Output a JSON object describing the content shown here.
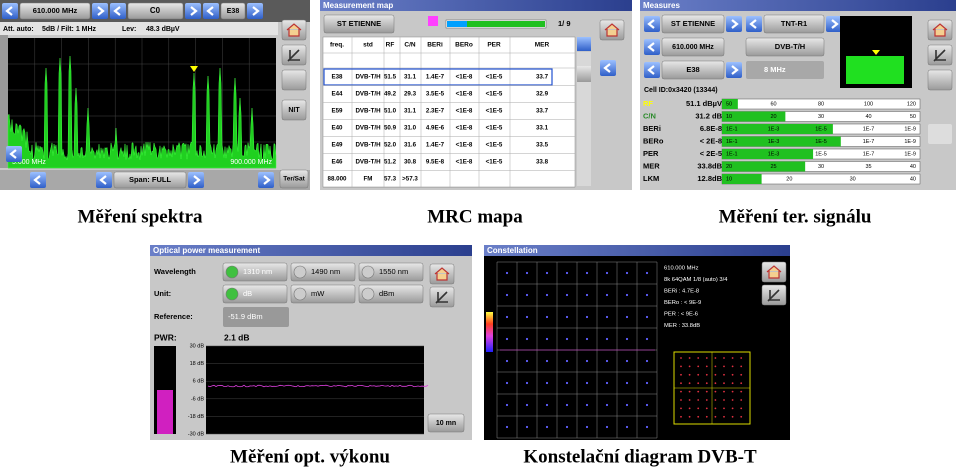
{
  "captions": [
    "Měření spektra",
    "MRC mapa",
    "Měření ter. signálu",
    "Měření opt. výkonu",
    "Konstelační diagram DVB-T"
  ],
  "spectrum": {
    "frequency": "610.000 MHz",
    "channel": "C0",
    "channel2": "E38",
    "att_label": "Att. auto:",
    "att_value": "5dB / Filt: 1 MHz",
    "lev_label": "Lev:",
    "lev_value": "48.3 dBµV",
    "start": "5.000 MHz",
    "stop": "900.000 MHz",
    "span": "Span: FULL",
    "nit": "NIT",
    "tersat": "Ter/Sat"
  },
  "mrc": {
    "title": "Measurement map",
    "site": "ST ETIENNE",
    "count": "1/ 9",
    "columns": [
      "freq.",
      "std",
      "RF",
      "C/N",
      "BERi",
      "BERo",
      "PER",
      "MER"
    ],
    "rows": [
      [
        "E38",
        "DVB-T/H",
        "51.5",
        "31.1",
        "1.4E-7",
        "<1E-8",
        "<1E-5",
        "33.7"
      ],
      [
        "E44",
        "DVB-T/H",
        "49.2",
        "29.3",
        "3.5E-5",
        "<1E-8",
        "<1E-5",
        "32.9"
      ],
      [
        "E59",
        "DVB-T/H",
        "51.0",
        "31.1",
        "2.3E-7",
        "<1E-8",
        "<1E-5",
        "33.7"
      ],
      [
        "E40",
        "DVB-T/H",
        "50.9",
        "31.0",
        "4.9E-6",
        "<1E-8",
        "<1E-5",
        "33.1"
      ],
      [
        "E49",
        "DVB-T/H",
        "52.0",
        "31.6",
        "1.4E-7",
        "<1E-8",
        "<1E-5",
        "33.5"
      ],
      [
        "E46",
        "DVB-T/H",
        "51.2",
        "30.8",
        "9.5E-8",
        "<1E-8",
        "<1E-5",
        "33.8"
      ],
      [
        "88.000",
        "FM",
        "57.3",
        ">57.3"
      ]
    ]
  },
  "measures": {
    "title": "Measures",
    "site": "ST ETIENNE",
    "network": "TNT-R1",
    "frequency": "610.000 MHz",
    "standard": "DVB-T/H",
    "channel": "E38",
    "bandwidth": "8 MHz",
    "cell": "Cell ID:0x3420 (13344)",
    "rows": [
      {
        "label": "RF",
        "value": "51.1 dBµV",
        "scale": [
          "50",
          "60",
          "80",
          "100",
          "120"
        ]
      },
      {
        "label": "C/N",
        "value": "31.2 dB",
        "scale": [
          "10",
          "20",
          "30",
          "40",
          "50"
        ]
      },
      {
        "label": "BERi",
        "value": "6.8E-8",
        "scale": [
          "1E-1",
          "1E-3",
          "1E-5",
          "1E-7",
          "1E-9"
        ]
      },
      {
        "label": "BERo",
        "value": "< 2E-8",
        "scale": [
          "1E-1",
          "1E-3",
          "1E-5",
          "1E-7",
          "1E-9"
        ]
      },
      {
        "label": "PER",
        "value": "< 2E-5",
        "scale": [
          "1E-1",
          "1E-3",
          "1E-5",
          "1E-7",
          "1E-9"
        ]
      },
      {
        "label": "MER",
        "value": "33.8dB",
        "scale": [
          "20",
          "25",
          "30",
          "35",
          "40"
        ]
      },
      {
        "label": "LKM",
        "value": "12.8dB",
        "scale": [
          "10",
          "20",
          "30",
          "40"
        ]
      }
    ]
  },
  "optical": {
    "title": "Optical power measurement",
    "wavelength_label": "Wavelength",
    "wavelengths": [
      "1310 nm",
      "1490 nm",
      "1550 nm"
    ],
    "unit_label": "Unit:",
    "units": [
      "dB",
      "mW",
      "dBm"
    ],
    "reference_label": "Reference:",
    "reference": "-51.9 dBm",
    "pwr_label": "PWR:",
    "pwr": "2.1 dB",
    "axis": [
      "30 dB",
      "18 dB",
      "6 dB",
      "-6 dB",
      "-18 dB",
      "-30 dB"
    ],
    "time": "10 mn"
  },
  "constellation": {
    "title": "Constellation",
    "frequency": "610.000 MHz",
    "mode": "8k 64QAM 1/8 (auto) 3/4",
    "beri": "BERi : 4.7E-8",
    "bero": "BERo : < 9E-9",
    "per": "PER : < 9E-6",
    "mer": "MER : 33.8dB"
  }
}
